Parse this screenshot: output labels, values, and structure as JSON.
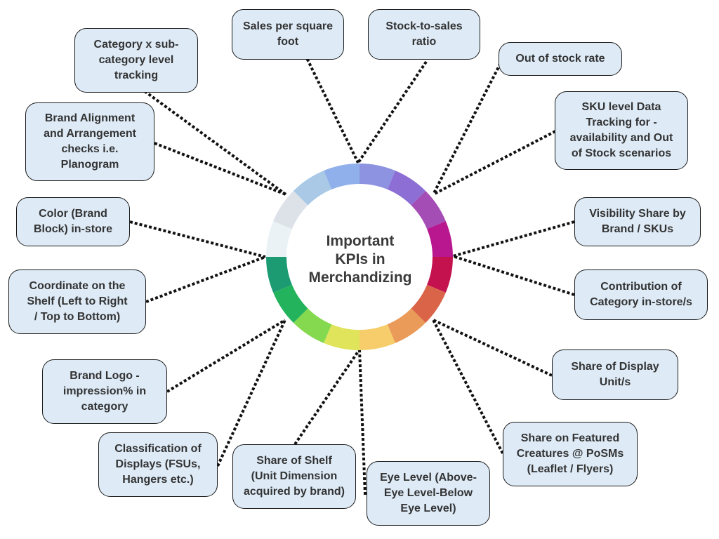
{
  "center": {
    "title": "Important\nKPIs in\nMerchandizing"
  },
  "colors": {
    "box_fill": "#deebf7",
    "box_border": "#1a1a1a",
    "connector": "#111111",
    "ring": [
      "#8d93e0",
      "#8c6ed4",
      "#a44db5",
      "#b8178f",
      "#c4124f",
      "#da6448",
      "#eb9b59",
      "#f6cd6a",
      "#dfe45a",
      "#84d94f",
      "#22b35c",
      "#1c9a72",
      "#eaf2f5",
      "#dde2e8",
      "#a9c9e6",
      "#8fb0ea"
    ]
  },
  "kpis": [
    {
      "id": "sales-per-square-foot",
      "label": "Sales per square\nfoot"
    },
    {
      "id": "stock-to-sales-ratio",
      "label": "Stock-to-sales\nratio"
    },
    {
      "id": "out-of-stock-rate",
      "label": "Out of stock rate"
    },
    {
      "id": "sku-level-data-tracking",
      "label": "SKU level Data\nTracking for -\navailability and Out\nof Stock scenarios"
    },
    {
      "id": "visibility-share",
      "label": "Visibility Share by\nBrand / SKUs"
    },
    {
      "id": "contribution-of-category",
      "label": "Contribution of\nCategory in-store/s"
    },
    {
      "id": "share-of-display-unit",
      "label": "Share of Display\nUnit/s"
    },
    {
      "id": "share-on-featured-creatures",
      "label": "Share on Featured\nCreatures @ PoSMs\n(Leaflet / Flyers)"
    },
    {
      "id": "eye-level",
      "label": "Eye Level (Above-\nEye Level-Below\nEye Level)"
    },
    {
      "id": "share-of-shelf",
      "label": "Share of Shelf\n(Unit Dimension\nacquired by brand)"
    },
    {
      "id": "classification-of-displays",
      "label": "Classification of\nDisplays (FSUs,\nHangers etc.)"
    },
    {
      "id": "brand-logo-impression",
      "label": "Brand Logo -\nimpression% in\ncategory"
    },
    {
      "id": "coordinate-on-shelf",
      "label": "Coordinate on the\nShelf (Left to Right\n/ Top to Bottom)"
    },
    {
      "id": "color-brand-block",
      "label": "Color (Brand\nBlock) in-store"
    },
    {
      "id": "brand-alignment",
      "label": "Brand Alignment\nand Arrangement\nchecks i.e.\nPlanogram"
    },
    {
      "id": "category-subcategory-tracking",
      "label": "Category x sub-\ncategory level\ntracking"
    }
  ]
}
